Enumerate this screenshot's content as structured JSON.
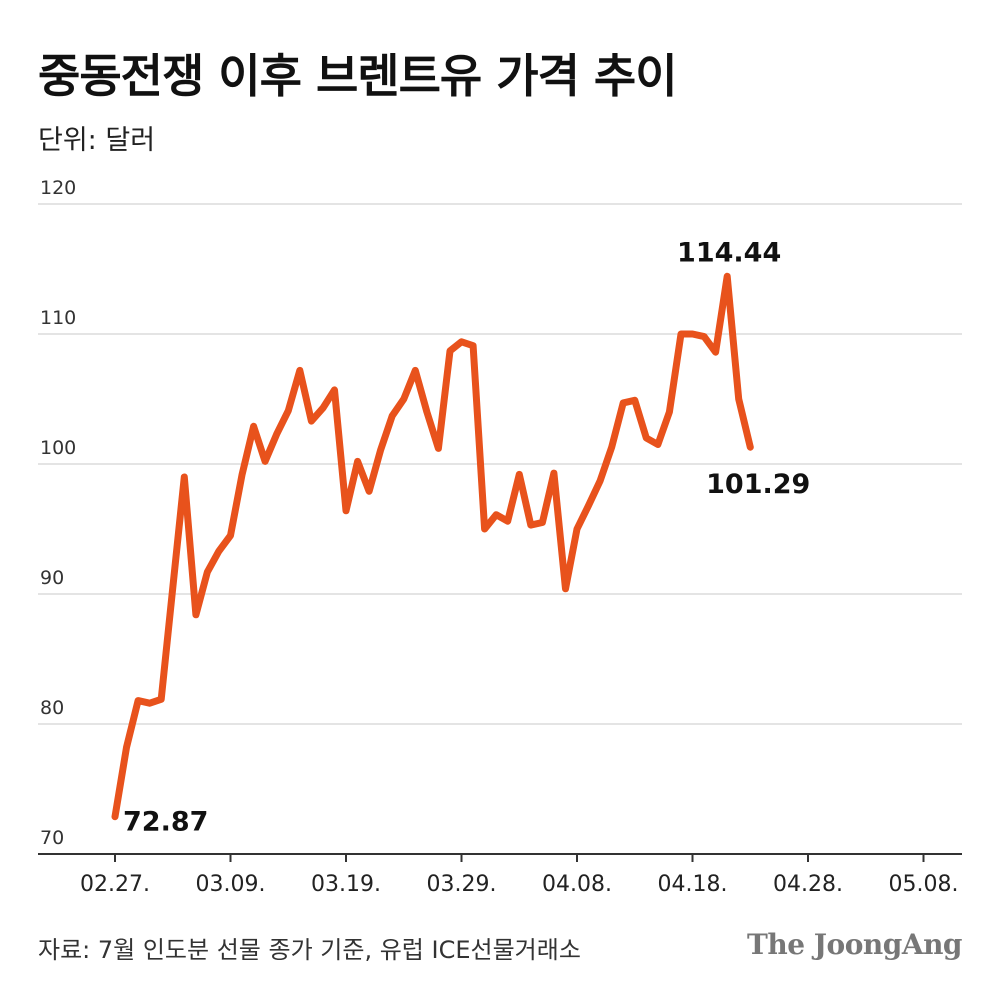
{
  "header": {
    "title": "중동전쟁 이후 브렌트유 가격 추이",
    "unit": "단위: 달러"
  },
  "footer": {
    "source": "자료: 7월 인도분 선물 종가 기준, 유럽 ICE선물거래소",
    "logo": "The JoongAng"
  },
  "colors": {
    "line": "#E8521C",
    "grid": "#c8c8c8",
    "axis": "#333333"
  },
  "chart_data": {
    "type": "line",
    "title": "중동전쟁 이후 브렌트유 가격 추이",
    "ylabel": "단위: 달러",
    "xlabel": "",
    "ylim": [
      70,
      120
    ],
    "yticks": [
      70,
      80,
      90,
      100,
      110,
      120
    ],
    "x_tick_labels": [
      "02.27.",
      "03.09.",
      "03.19.",
      "03.29.",
      "04.08.",
      "04.18.",
      "04.28.",
      "05.08."
    ],
    "x_tick_indices": [
      0,
      10,
      20,
      30,
      40,
      50,
      60,
      70
    ],
    "grid": true,
    "series": [
      {
        "values": [
          72.87,
          78.2,
          81.8,
          81.6,
          81.9,
          90.5,
          99.0,
          88.4,
          91.7,
          93.3,
          94.5,
          99.2,
          102.9,
          100.2,
          102.3,
          104.1,
          107.2,
          103.3,
          104.3,
          105.7,
          96.4,
          100.2,
          97.9,
          101.1,
          103.7,
          105.0,
          107.2,
          104.0,
          101.2,
          108.7,
          109.4,
          109.1,
          95.0,
          96.1,
          95.6,
          99.2,
          95.3,
          95.5,
          99.3,
          90.4,
          95.0,
          96.8,
          98.7,
          101.3,
          104.7,
          104.9,
          102.0,
          101.5,
          104.0,
          110.0,
          110.0,
          109.8,
          108.6,
          114.44,
          105.0,
          101.29
        ],
        "x_index": [
          0,
          1,
          2,
          3,
          4,
          5,
          6,
          7,
          8,
          9,
          10,
          11,
          12,
          13,
          14,
          15,
          16,
          17,
          18,
          19,
          20,
          21,
          22,
          23,
          24,
          25,
          26,
          27,
          28,
          29,
          30,
          31,
          32,
          33,
          34,
          35,
          36,
          37,
          38,
          39,
          40,
          41,
          42,
          43,
          44,
          45,
          46,
          47,
          48,
          49,
          50,
          51,
          52,
          53,
          54,
          55
        ]
      }
    ],
    "annotations": [
      {
        "text": "72.87",
        "point_index": 0
      },
      {
        "text": "114.44",
        "point_index": 53
      },
      {
        "text": "101.29",
        "point_index": 55
      }
    ]
  }
}
